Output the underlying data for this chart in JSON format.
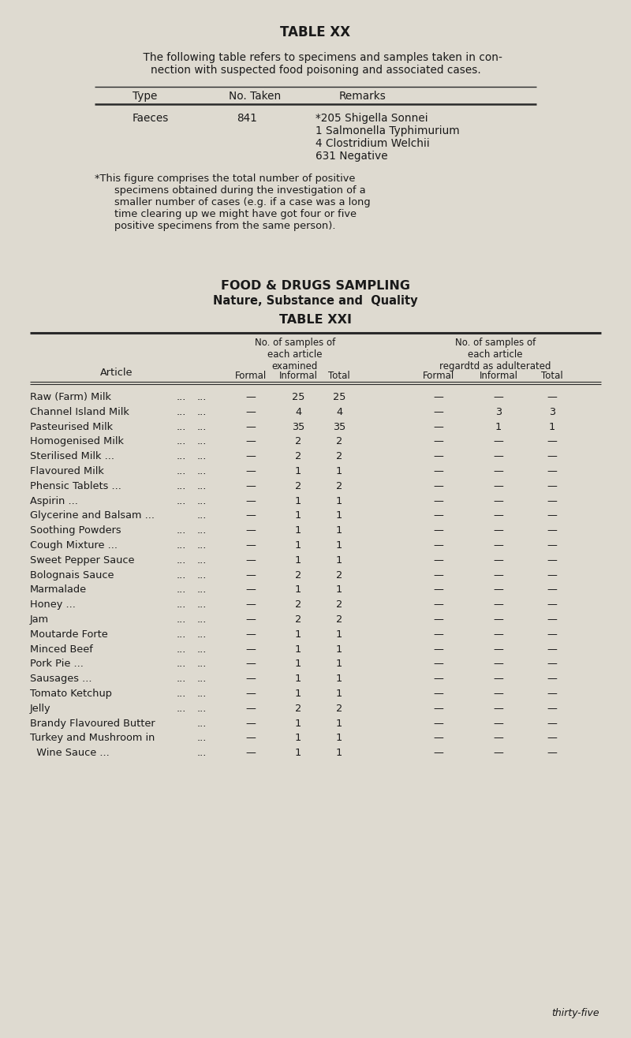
{
  "bg_color": "#dedad0",
  "text_color": "#1a1a1a",
  "title_xx": "TABLE XX",
  "intro_line1": "    The following table refers to specimens and samples taken in con-",
  "intro_line2": "nection with suspected food poisoning and associated cases.",
  "faeces_type": "Faeces",
  "faeces_no": "841",
  "faeces_remarks": [
    "*205 Shigella Sonnei",
    "1 Salmonella Typhimurium",
    "4 Clostridium Welchii",
    "631 Negative"
  ],
  "footnote_lines": [
    "*This figure comprises the total number of positive",
    "specimens obtained during the investigation of a",
    "smaller number of cases (e.g. if a case was a long",
    "time clearing up we might have got four or five",
    "positive specimens from the same person)."
  ],
  "section_title1": "FOOD & DRUGS SAMPLING",
  "section_title2": "Nature, Substance and  Quality",
  "title_xxi": "TABLE XXI",
  "col_group1": "No. of samples of\neach article\nexamined",
  "col_group2": "No. of samples of\neach article\nregardtd as adulterated",
  "sub_headers": [
    "Formal",
    "Informal",
    "Total",
    "Formal",
    "Informal",
    "Total"
  ],
  "article_label": "Article",
  "rows": [
    {
      "name": "Raw (Farm) Milk",
      "dots": [
        "...",
        "..."
      ],
      "ex": [
        "—",
        "25",
        "25"
      ],
      "ad": [
        "—",
        "—",
        "—"
      ]
    },
    {
      "name": "Channel Island Milk",
      "dots": [
        "...",
        "..."
      ],
      "ex": [
        "—",
        "4",
        "4"
      ],
      "ad": [
        "—",
        "3",
        "3"
      ]
    },
    {
      "name": "Pasteurised Milk",
      "dots": [
        "...",
        "..."
      ],
      "ex": [
        "—",
        "35",
        "35"
      ],
      "ad": [
        "—",
        "1",
        "1"
      ]
    },
    {
      "name": "Homogenised Milk",
      "dots": [
        "...",
        "..."
      ],
      "ex": [
        "—",
        "2",
        "2"
      ],
      "ad": [
        "—",
        "—",
        "—"
      ]
    },
    {
      "name": "Sterilised Milk ...",
      "dots": [
        "...",
        "..."
      ],
      "ex": [
        "—",
        "2",
        "2"
      ],
      "ad": [
        "—",
        "—",
        "—"
      ]
    },
    {
      "name": "Flavoured Milk",
      "dots": [
        "...",
        "..."
      ],
      "ex": [
        "—",
        "1",
        "1"
      ],
      "ad": [
        "—",
        "—",
        "—"
      ]
    },
    {
      "name": "Phensic Tablets ...",
      "dots": [
        "...",
        "..."
      ],
      "ex": [
        "—",
        "2",
        "2"
      ],
      "ad": [
        "—",
        "—",
        "—"
      ]
    },
    {
      "name": "Aspirin ...",
      "dots": [
        "...",
        "..."
      ],
      "ex": [
        "—",
        "1",
        "1"
      ],
      "ad": [
        "—",
        "—",
        "—"
      ]
    },
    {
      "name": "Glycerine and Balsam ...",
      "dots": [
        "..."
      ],
      "ex": [
        "—",
        "1",
        "1"
      ],
      "ad": [
        "—",
        "—",
        "—"
      ]
    },
    {
      "name": "Soothing Powders",
      "dots": [
        "...",
        "..."
      ],
      "ex": [
        "—",
        "1",
        "1"
      ],
      "ad": [
        "—",
        "—",
        "—"
      ]
    },
    {
      "name": "Cough Mixture ...",
      "dots": [
        "...",
        "..."
      ],
      "ex": [
        "—",
        "1",
        "1"
      ],
      "ad": [
        "—",
        "—",
        "—"
      ]
    },
    {
      "name": "Sweet Pepper Sauce",
      "dots": [
        "...",
        "..."
      ],
      "ex": [
        "—",
        "1",
        "1"
      ],
      "ad": [
        "—",
        "—",
        "—"
      ]
    },
    {
      "name": "Bolognais Sauce",
      "dots": [
        "...",
        "..."
      ],
      "ex": [
        "—",
        "2",
        "2"
      ],
      "ad": [
        "—",
        "—",
        "—"
      ]
    },
    {
      "name": "Marmalade",
      "dots": [
        "...",
        "..."
      ],
      "ex": [
        "—",
        "1",
        "1"
      ],
      "ad": [
        "—",
        "—",
        "—"
      ]
    },
    {
      "name": "Honey ...",
      "dots": [
        "...",
        "..."
      ],
      "ex": [
        "—",
        "2",
        "2"
      ],
      "ad": [
        "—",
        "—",
        "—"
      ]
    },
    {
      "name": "Jam",
      "dots": [
        "...",
        "..."
      ],
      "ex": [
        "—",
        "2",
        "2"
      ],
      "ad": [
        "—",
        "—",
        "—"
      ]
    },
    {
      "name": "Moutarde Forte",
      "dots": [
        "...",
        "..."
      ],
      "ex": [
        "—",
        "1",
        "1"
      ],
      "ad": [
        "—",
        "—",
        "—"
      ]
    },
    {
      "name": "Minced Beef",
      "dots": [
        "...",
        "..."
      ],
      "ex": [
        "—",
        "1",
        "1"
      ],
      "ad": [
        "—",
        "—",
        "—"
      ]
    },
    {
      "name": "Pork Pie ...",
      "dots": [
        "...",
        "..."
      ],
      "ex": [
        "—",
        "1",
        "1"
      ],
      "ad": [
        "—",
        "—",
        "—"
      ]
    },
    {
      "name": "Sausages ...",
      "dots": [
        "...",
        "..."
      ],
      "ex": [
        "—",
        "1",
        "1"
      ],
      "ad": [
        "—",
        "—",
        "—"
      ]
    },
    {
      "name": "Tomato Ketchup",
      "dots": [
        "...",
        "..."
      ],
      "ex": [
        "—",
        "1",
        "1"
      ],
      "ad": [
        "—",
        "—",
        "—"
      ]
    },
    {
      "name": "Jelly",
      "dots": [
        "...",
        "..."
      ],
      "ex": [
        "—",
        "2",
        "2"
      ],
      "ad": [
        "—",
        "—",
        "—"
      ]
    },
    {
      "name": "Brandy Flavoured Butter",
      "dots": [
        "..."
      ],
      "ex": [
        "—",
        "1",
        "1"
      ],
      "ad": [
        "—",
        "—",
        "—"
      ]
    },
    {
      "name": "Turkey and Mushroom in",
      "name2": "  Wine Sauce ...",
      "dots": [
        "..."
      ],
      "ex": [
        "—",
        "1",
        "1"
      ],
      "ad": [
        "—",
        "—",
        "—"
      ]
    }
  ],
  "page_number": "thirty-five"
}
